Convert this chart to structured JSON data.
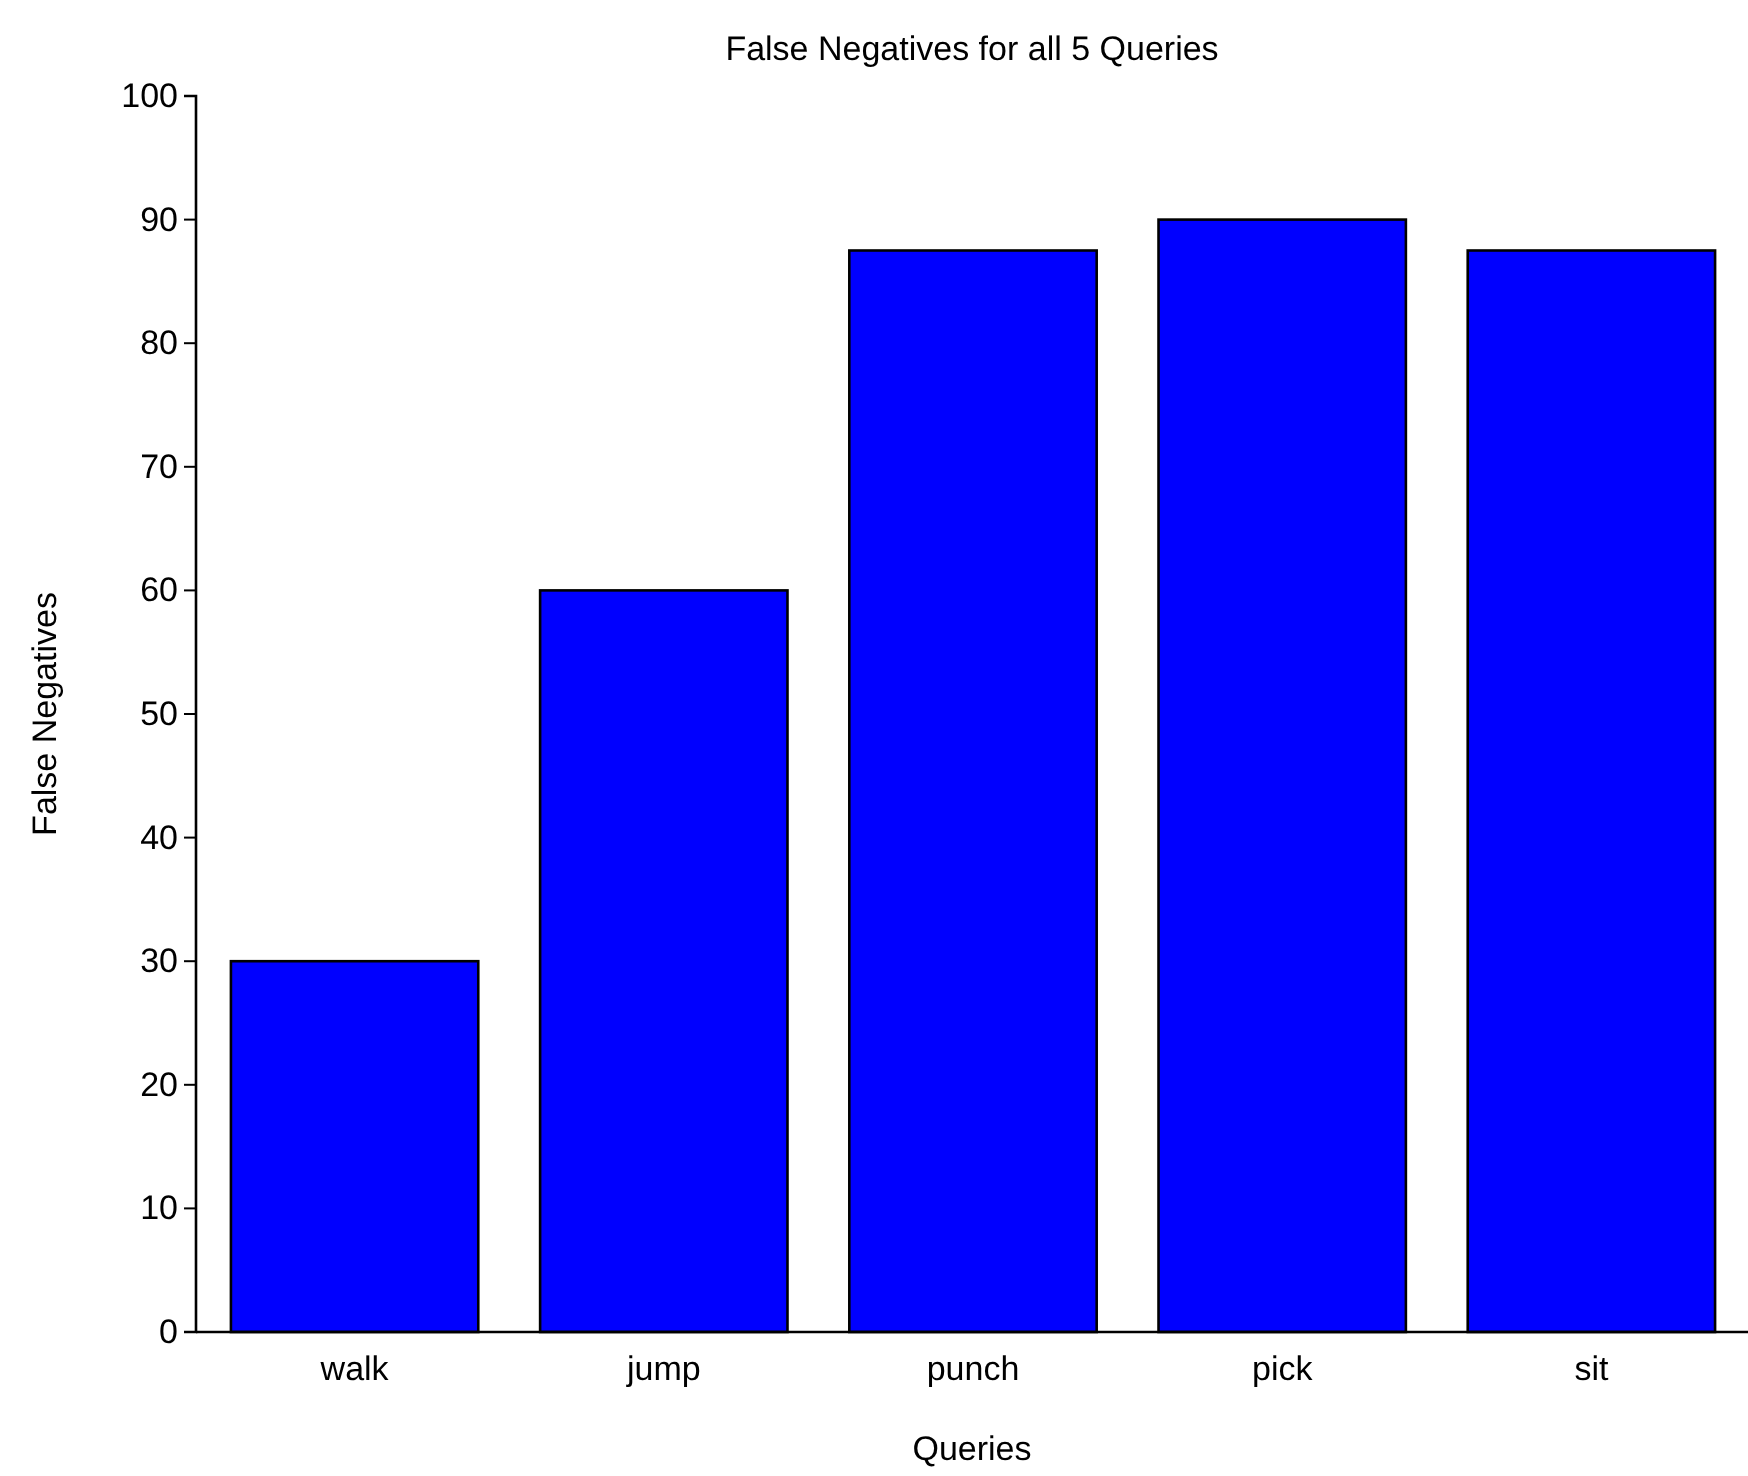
{
  "chart_data": {
    "type": "bar",
    "title": "False Negatives for all 5 Queries",
    "xlabel": "Queries",
    "ylabel": "False Negatives",
    "categories": [
      "walk",
      "jump",
      "punch",
      "pick",
      "sit"
    ],
    "values": [
      30,
      60,
      87.5,
      90,
      87.5
    ],
    "color": "#0000ff",
    "ylim": [
      0,
      100
    ],
    "yticks": [
      0,
      10,
      20,
      30,
      40,
      50,
      60,
      70,
      80,
      90,
      100
    ],
    "grid": false
  }
}
